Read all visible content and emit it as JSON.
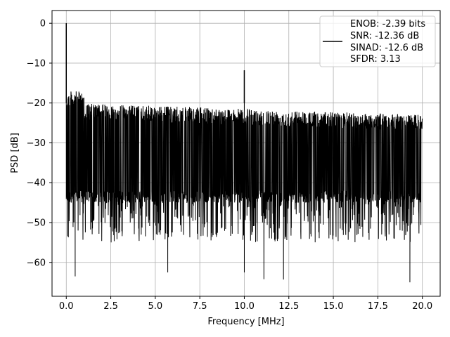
{
  "chart_data": {
    "type": "line",
    "xlabel": "Frequency [MHz]",
    "ylabel": "PSD [dB]",
    "xlim": [
      -0.8,
      21.0
    ],
    "ylim": [
      -68.5,
      3.2
    ],
    "x_ticks": [
      0.0,
      2.5,
      5.0,
      7.5,
      10.0,
      12.5,
      15.0,
      17.5,
      20.0
    ],
    "x_tick_labels": [
      "0.0",
      "2.5",
      "5.0",
      "7.5",
      "10.0",
      "12.5",
      "15.0",
      "17.5",
      "20.0"
    ],
    "y_ticks": [
      0,
      -10,
      -20,
      -30,
      -40,
      -50,
      -60
    ],
    "y_tick_labels": [
      "0",
      "−10",
      "−20",
      "−30",
      "−40",
      "−50",
      "−60"
    ],
    "grid": true,
    "legend_position": "top-right",
    "legend_lines": [
      "ENOB: -2.39 bits",
      "SNR: -12.36 dB",
      "SINAD: -12.6 dB",
      "SFDR: 3.13"
    ],
    "series": [
      {
        "color": "#000000",
        "x_range": [
          0.0,
          20.0
        ],
        "noise_floor_db": [
          -45,
          -20
        ],
        "noise_mean_db": -33,
        "peaks": [
          {
            "x": 0.0,
            "y": 0.0
          },
          {
            "x": 10.0,
            "y": -11.8
          }
        ],
        "deep_nulls": [
          {
            "x": 0.5,
            "y": -63.5
          },
          {
            "x": 5.7,
            "y": -62.5
          },
          {
            "x": 10.0,
            "y": -62.5
          },
          {
            "x": 11.1,
            "y": -64.2
          },
          {
            "x": 12.2,
            "y": -64.3
          },
          {
            "x": 19.3,
            "y": -65.0
          }
        ]
      }
    ]
  }
}
